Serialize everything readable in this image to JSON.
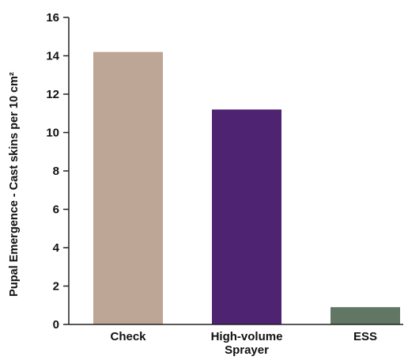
{
  "chart_data": {
    "type": "bar",
    "title": "",
    "xlabel": "",
    "ylabel": "Pupal Emergence - Cast skins per 10 cm²",
    "ylim": [
      0,
      16
    ],
    "yticks": [
      0,
      2,
      4,
      6,
      8,
      10,
      12,
      14,
      16
    ],
    "grid": false,
    "categories": [
      {
        "lines": [
          "Check"
        ]
      },
      {
        "lines": [
          "High-volume",
          "Sprayer"
        ]
      },
      {
        "lines": [
          "ESS"
        ]
      }
    ],
    "values": [
      14.2,
      11.2,
      0.9
    ],
    "colors": [
      "#bda695",
      "#4e2371",
      "#617764"
    ],
    "axis_color": "#222222"
  }
}
